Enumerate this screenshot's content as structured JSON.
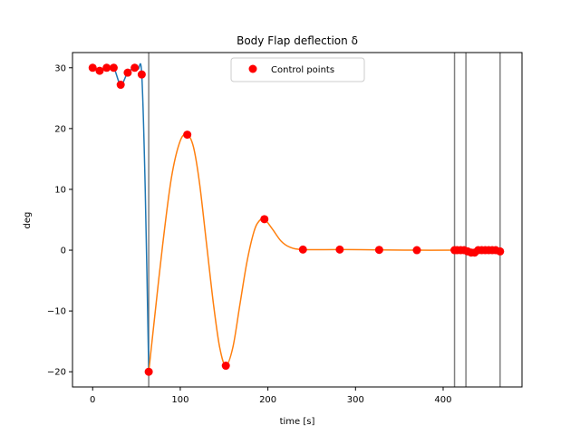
{
  "chart_data": {
    "type": "line",
    "title": "Body Flap deflection δ",
    "xlabel": "time [s]",
    "ylabel": "deg",
    "xlim": [
      -23,
      490
    ],
    "ylim": [
      -22.5,
      32.5
    ],
    "xticks": [
      0,
      100,
      200,
      300,
      400
    ],
    "yticks": [
      -20,
      -10,
      0,
      10,
      20,
      30
    ],
    "grid": false,
    "legend": {
      "placement": "top-center",
      "entries": [
        "Control points"
      ]
    },
    "vertical_lines": [
      64,
      413,
      426,
      465
    ],
    "colors": {
      "segment1": "#1f77b4",
      "segment2": "#ff7f0e",
      "points": "#ff0000",
      "vlines": "#808080"
    },
    "series": [
      {
        "name": "",
        "color": "#1f77b4",
        "x": [
          0,
          8,
          16,
          24,
          32,
          40,
          48,
          52,
          56,
          60,
          64
        ],
        "y": [
          30,
          29.5,
          30,
          30,
          27.2,
          29.2,
          30,
          29.8,
          29,
          10,
          -20
        ]
      },
      {
        "name": "",
        "color": "#ff7f0e",
        "x": [
          64,
          70,
          80,
          90,
          100,
          108,
          115,
          122,
          130,
          138,
          145,
          152,
          160,
          168,
          176,
          184,
          190,
          196,
          205,
          215,
          225,
          240,
          282,
          327,
          370,
          413,
          426,
          465
        ],
        "y": [
          -20,
          -12,
          1,
          12,
          18,
          19,
          17,
          11,
          1,
          -9,
          -16,
          -19,
          -16,
          -9,
          -2,
          3,
          4.8,
          5.1,
          3.5,
          1.5,
          0.5,
          0.1,
          0.1,
          0.05,
          0,
          0,
          0,
          0
        ]
      },
      {
        "name": "Control points",
        "color": "#ff0000",
        "type": "scatter",
        "x": [
          0,
          8,
          16,
          24,
          32,
          40,
          48,
          56,
          64,
          108,
          152,
          196,
          240,
          282,
          327,
          370,
          413,
          416,
          420,
          424,
          428,
          432,
          436,
          440,
          444,
          448,
          452,
          456,
          460,
          465
        ],
        "y": [
          30,
          29.5,
          30,
          30,
          27.2,
          29.2,
          30,
          28.9,
          -20,
          19,
          -19,
          5.1,
          0.1,
          0.1,
          0.05,
          0,
          0,
          0,
          0,
          0,
          -0.2,
          -0.4,
          -0.4,
          0,
          0,
          0,
          0,
          0,
          0,
          -0.2
        ]
      }
    ]
  }
}
